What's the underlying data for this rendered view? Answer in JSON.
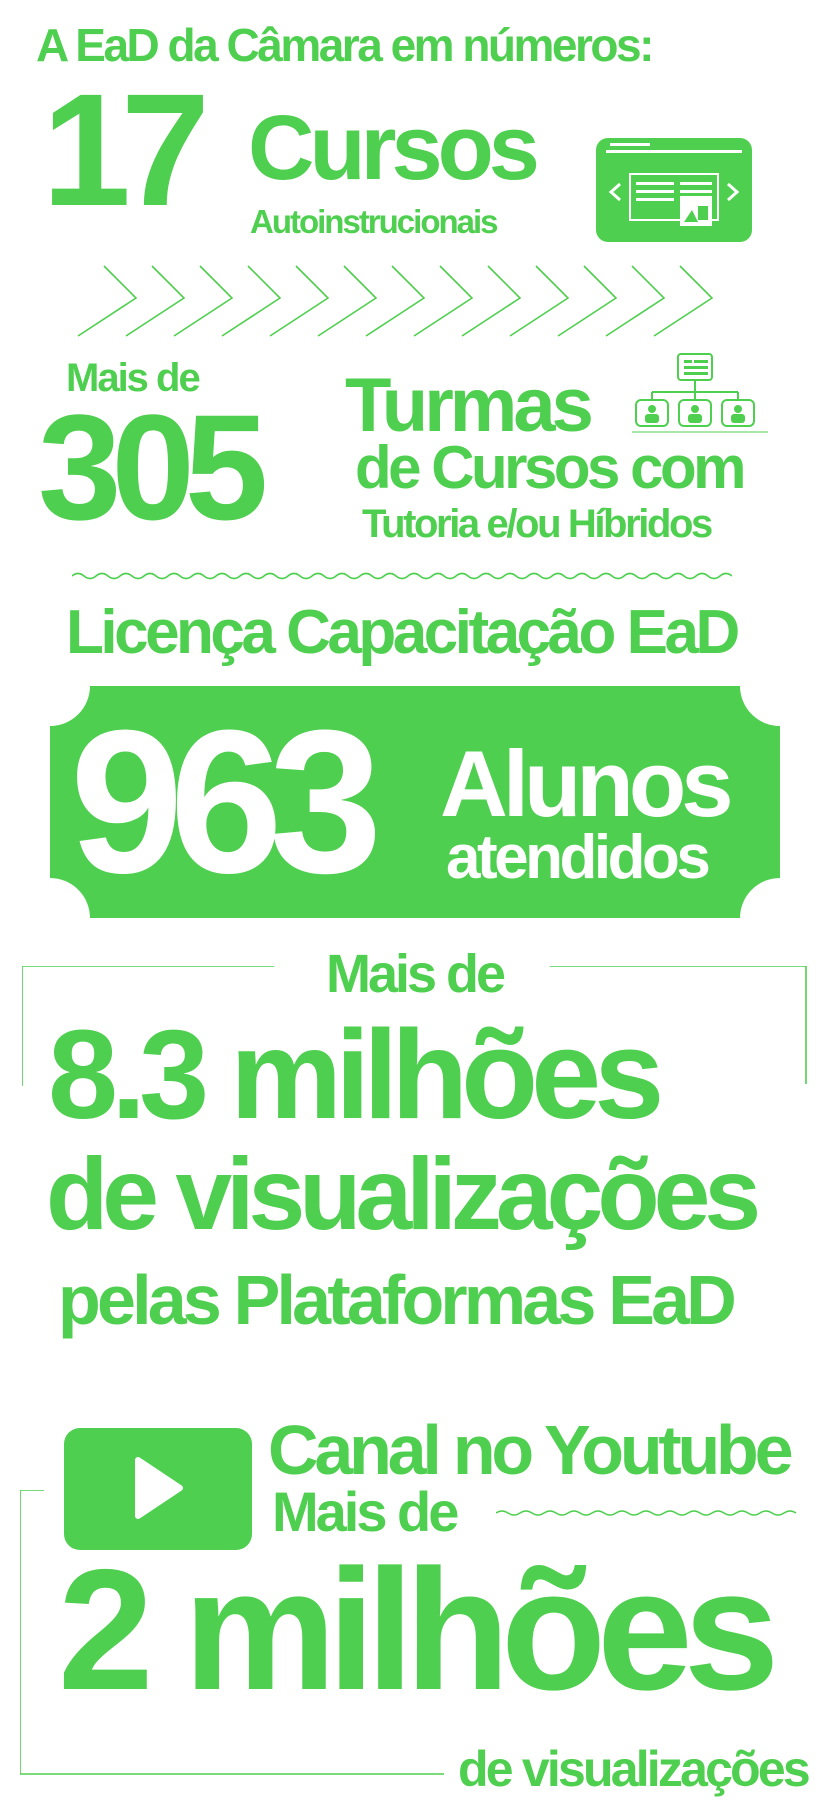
{
  "colors": {
    "accent": "#4fcf4f",
    "background": "#ffffff"
  },
  "header": {
    "title": "A EaD da Câmara em números:"
  },
  "courses": {
    "number": "17",
    "title": "Cursos",
    "subtitle": "Autoinstrucionais",
    "icon": "presentation-slides-icon"
  },
  "classes": {
    "prefix": "Mais de",
    "number": "305",
    "line1": "Turmas",
    "line2": "de Cursos com",
    "line3": "Tutoria e/ou Híbridos",
    "icon": "org-chart-people-icon"
  },
  "license": {
    "title": "Licença Capacitação EaD",
    "number": "963",
    "line1": "Alunos",
    "line2": "atendidos"
  },
  "views": {
    "prefix": "Mais de",
    "line1": "8.3 milhões",
    "line2": "de visualizações",
    "line3": "pelas Plataformas EaD"
  },
  "youtube": {
    "icon": "youtube-play-icon",
    "line1": "Canal no Youtube",
    "line2": "Mais de",
    "number": "2 milhões",
    "line3": "de visualizações"
  }
}
